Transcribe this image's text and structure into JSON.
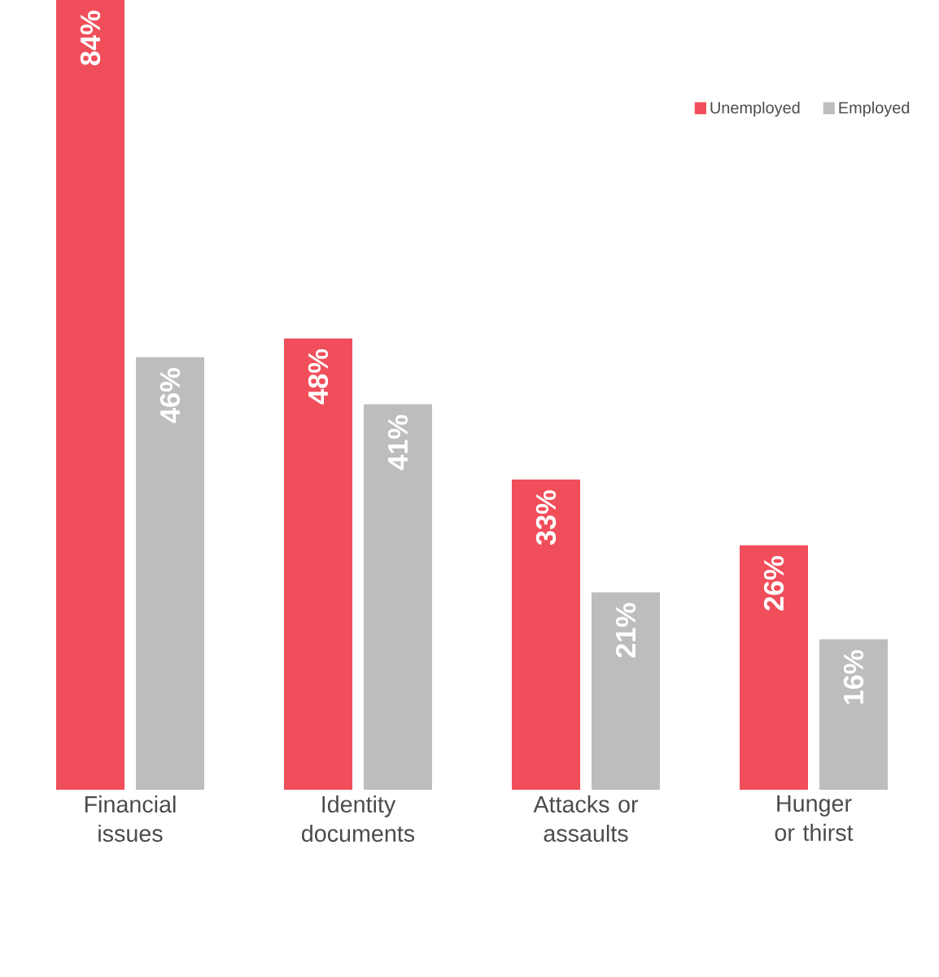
{
  "chart_data": {
    "type": "bar",
    "categories": [
      "Financial issues",
      "Identity documents",
      "Attacks or assaults",
      "Hunger or thirst"
    ],
    "series": [
      {
        "name": "Unemployed",
        "color": "#f04e5a",
        "values": [
          84,
          48,
          33,
          26
        ],
        "value_labels": [
          "84%",
          "48%",
          "33%",
          "26%"
        ]
      },
      {
        "name": "Employed",
        "color": "#bdbdbf",
        "values": [
          46,
          41,
          21,
          16
        ],
        "value_labels": [
          "46%",
          "41%",
          "21%",
          "16%"
        ]
      }
    ],
    "legend": "top right"
  }
}
